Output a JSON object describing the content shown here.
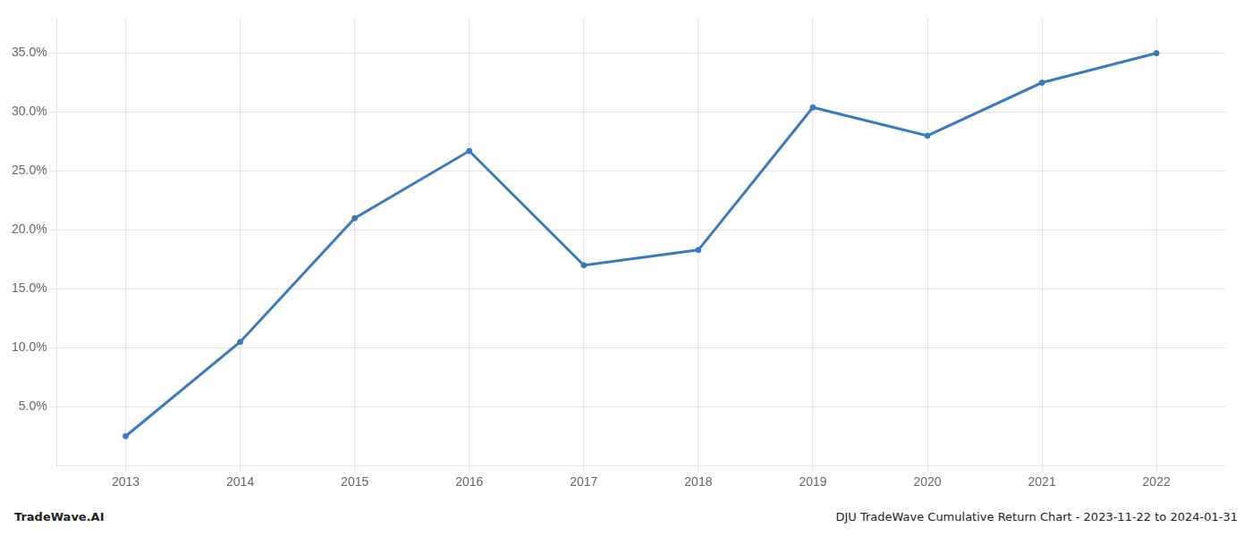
{
  "chart_data": {
    "type": "line",
    "x": [
      2013,
      2014,
      2015,
      2016,
      2017,
      2018,
      2019,
      2020,
      2021,
      2022
    ],
    "values": [
      2.5,
      10.5,
      21.0,
      26.7,
      17.0,
      18.3,
      30.4,
      28.0,
      32.5,
      35.0
    ],
    "color": "#3a7abf",
    "xlim": [
      2012.4,
      2022.6
    ],
    "xticks": [
      2013,
      2014,
      2015,
      2016,
      2017,
      2018,
      2019,
      2020,
      2021,
      2022
    ],
    "ylim": [
      0.0,
      38.0
    ],
    "yticks": [
      {
        "value": 5.0,
        "label": "5.0%"
      },
      {
        "value": 10.0,
        "label": "10.0%"
      },
      {
        "value": 15.0,
        "label": "15.0%"
      },
      {
        "value": 20.0,
        "label": "20.0%"
      },
      {
        "value": 25.0,
        "label": "25.0%"
      },
      {
        "value": 30.0,
        "label": "30.0%"
      },
      {
        "value": 35.0,
        "label": "35.0%"
      }
    ],
    "grid": true,
    "annotations": [
      "TradeWave.AI",
      "DJU TradeWave Cumulative Return Chart - 2023-11-22 to 2024-01-31"
    ]
  }
}
